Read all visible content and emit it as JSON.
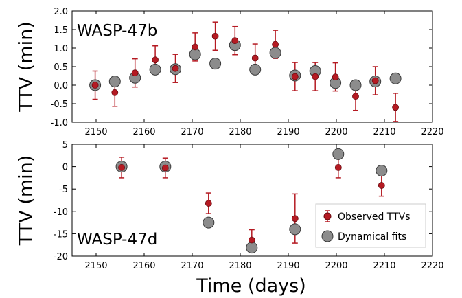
{
  "colors": {
    "observed": "#b51a22",
    "observed_edge": "#6b0a10",
    "fit": "#8c8c8c",
    "fit_edge": "#3a3a3a"
  },
  "xlabel": "Time (days)",
  "legend": {
    "observed": "Observed TTVs",
    "fit": "Dynamical fits"
  },
  "chart_data": [
    {
      "type": "scatter",
      "title": "WASP-47b",
      "ylabel": "TTV (min)",
      "xlim": [
        2145,
        2220
      ],
      "ylim": [
        -1.0,
        2.0
      ],
      "xticks": [
        "2150",
        "2160",
        "2170",
        "2180",
        "2190",
        "2200",
        "2210",
        "2220"
      ],
      "xtick_values": [
        2150,
        2160,
        2170,
        2180,
        2190,
        2200,
        2210,
        2220
      ],
      "yticks": [
        "-1.0",
        "-0.5",
        "0.0",
        "0.5",
        "1.0",
        "1.5",
        "2.0"
      ],
      "ytick_values": [
        -1.0,
        -0.5,
        0.0,
        0.5,
        1.0,
        1.5,
        2.0
      ],
      "series": [
        {
          "name": "Observed TTVs",
          "x": [
            2149.8,
            2153.9,
            2158.1,
            2162.3,
            2166.5,
            2170.6,
            2174.8,
            2178.9,
            2183.1,
            2187.3,
            2191.4,
            2195.6,
            2199.8,
            2204.0,
            2208.1,
            2212.3
          ],
          "y": [
            0.0,
            -0.2,
            0.33,
            0.68,
            0.45,
            1.03,
            1.32,
            1.2,
            0.73,
            1.1,
            0.23,
            0.23,
            0.22,
            -0.3,
            0.12,
            -0.6
          ],
          "yerr": [
            0.38,
            0.37,
            0.38,
            0.38,
            0.38,
            0.38,
            0.38,
            0.38,
            0.38,
            0.38,
            0.38,
            0.38,
            0.38,
            0.38,
            0.38,
            0.38
          ]
        },
        {
          "name": "Dynamical fits",
          "x": [
            2149.8,
            2153.9,
            2158.1,
            2162.3,
            2166.5,
            2170.6,
            2174.8,
            2178.9,
            2183.1,
            2187.3,
            2191.4,
            2195.6,
            2199.8,
            2204.0,
            2208.1,
            2212.3
          ],
          "y": [
            0.0,
            0.1,
            0.2,
            0.42,
            0.43,
            0.83,
            0.58,
            1.08,
            0.42,
            0.87,
            0.26,
            0.38,
            0.06,
            0.0,
            0.1,
            0.18
          ]
        }
      ]
    },
    {
      "type": "scatter",
      "title": "WASP-47d",
      "ylabel": "TTV (min)",
      "xlim": [
        2145,
        2220
      ],
      "ylim": [
        -20,
        5
      ],
      "xticks": [
        "2150",
        "2160",
        "2170",
        "2180",
        "2190",
        "2200",
        "2210",
        "2220"
      ],
      "xtick_values": [
        2150,
        2160,
        2170,
        2180,
        2190,
        2200,
        2210,
        2220
      ],
      "yticks": [
        "-20",
        "-15",
        "-10",
        "-5",
        "0",
        "5"
      ],
      "ytick_values": [
        -20,
        -15,
        -10,
        -5,
        0,
        5
      ],
      "series": [
        {
          "name": "Observed TTVs",
          "x": [
            2155.3,
            2164.4,
            2173.4,
            2182.4,
            2191.4,
            2200.4,
            2209.4
          ],
          "y": [
            -0.2,
            -0.3,
            -8.2,
            -16.4,
            -11.6,
            -0.2,
            -4.2
          ],
          "yerr": [
            2.3,
            2.2,
            2.3,
            2.3,
            5.5,
            2.3,
            2.4
          ]
        },
        {
          "name": "Dynamical fits",
          "x": [
            2155.3,
            2164.4,
            2173.4,
            2182.4,
            2191.4,
            2200.4,
            2209.4
          ],
          "y": [
            0.0,
            0.0,
            -12.5,
            -18.1,
            -14.0,
            2.8,
            -0.9
          ]
        }
      ]
    }
  ]
}
